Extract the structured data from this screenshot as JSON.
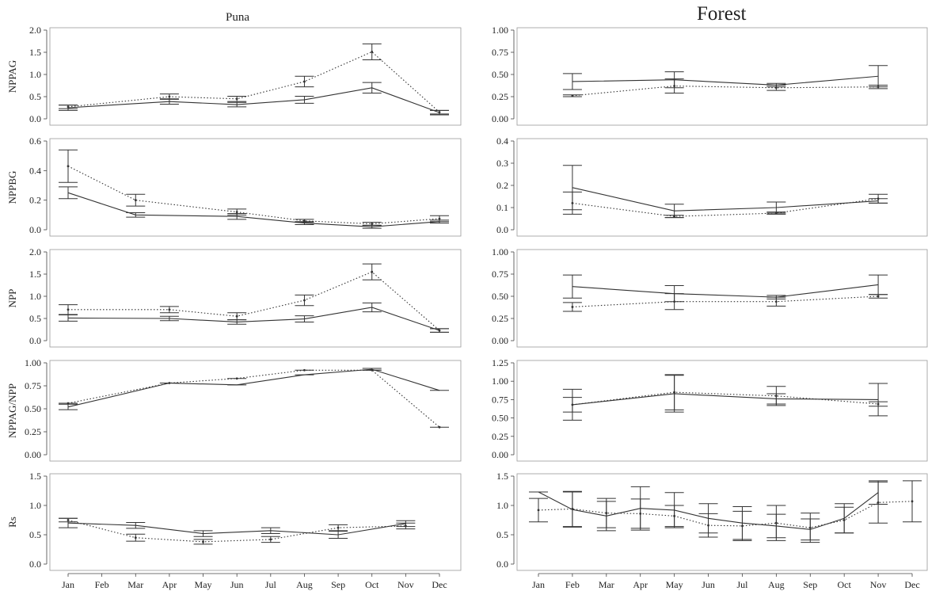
{
  "titles": {
    "left": "Puna",
    "right": "Forest"
  },
  "months": [
    "Jan",
    "Feb",
    "Mar",
    "Apr",
    "May",
    "Jun",
    "Jul",
    "Aug",
    "Sep",
    "Oct",
    "Nov",
    "Dec"
  ],
  "styles": {
    "line": "#333333",
    "axis": "#444444",
    "frame": "#999999"
  },
  "chart_data": [
    {
      "type": "line",
      "panel": "puna",
      "ylabel": "NPPAG",
      "ylim": [
        0,
        2.0
      ],
      "yticks": [
        "0.0",
        "0.5",
        "1.0",
        "1.5",
        "2.0"
      ],
      "x": [
        "Jan",
        "Apr",
        "Jun",
        "Aug",
        "Oct",
        "Dec"
      ],
      "series": [
        {
          "style": "solid",
          "values": [
            0.25,
            0.39,
            0.32,
            0.43,
            0.7,
            0.14
          ],
          "err": [
            0.06,
            0.06,
            0.05,
            0.08,
            0.12,
            0.05
          ]
        },
        {
          "style": "dotted",
          "values": [
            0.27,
            0.5,
            0.45,
            0.84,
            1.51,
            0.15
          ],
          "err": [
            0.04,
            0.06,
            0.06,
            0.12,
            0.18,
            0.04
          ]
        }
      ]
    },
    {
      "type": "line",
      "panel": "forest",
      "ylabel": "",
      "ylim": [
        0,
        1.0
      ],
      "yticks": [
        "0.00",
        "0.25",
        "0.50",
        "0.75",
        "1.00"
      ],
      "x": [
        "Feb",
        "May",
        "Aug",
        "Nov"
      ],
      "series": [
        {
          "style": "solid",
          "values": [
            0.42,
            0.44,
            0.38,
            0.48
          ],
          "err": [
            0.09,
            0.09,
            0.02,
            0.12
          ]
        },
        {
          "style": "dotted",
          "values": [
            0.26,
            0.37,
            0.35,
            0.36
          ],
          "err": [
            0.01,
            0.08,
            0.03,
            0.02
          ]
        }
      ]
    },
    {
      "type": "line",
      "panel": "puna",
      "ylabel": "NPPBG",
      "ylim": [
        0,
        0.6
      ],
      "yticks": [
        "0.0",
        "0.2",
        "0.4",
        "0.6"
      ],
      "x": [
        "Jan",
        "Mar",
        "Jun",
        "Aug",
        "Oct",
        "Dec"
      ],
      "series": [
        {
          "style": "solid",
          "values": [
            0.25,
            0.1,
            0.09,
            0.045,
            0.02,
            0.055
          ],
          "err": [
            0.04,
            0.015,
            0.02,
            0.01,
            0.01,
            0.01
          ]
        },
        {
          "style": "dotted",
          "values": [
            0.43,
            0.2,
            0.12,
            0.06,
            0.04,
            0.075
          ],
          "err": [
            0.11,
            0.04,
            0.02,
            0.01,
            0.01,
            0.02
          ]
        }
      ]
    },
    {
      "type": "line",
      "panel": "forest",
      "ylabel": "",
      "ylim": [
        0,
        0.4
      ],
      "yticks": [
        "0.0",
        "0.1",
        "0.2",
        "0.3",
        "0.4"
      ],
      "x": [
        "Feb",
        "May",
        "Aug",
        "Nov"
      ],
      "series": [
        {
          "style": "solid",
          "values": [
            0.19,
            0.085,
            0.1,
            0.13
          ],
          "err": [
            0.1,
            0.03,
            0.025,
            0.01
          ]
        },
        {
          "style": "dotted",
          "values": [
            0.12,
            0.06,
            0.075,
            0.14
          ],
          "err": [
            0.05,
            0.005,
            0.005,
            0.02
          ]
        }
      ]
    },
    {
      "type": "line",
      "panel": "puna",
      "ylabel": "NPP",
      "ylim": [
        0,
        2.0
      ],
      "yticks": [
        "0.0",
        "0.5",
        "1.0",
        "1.5",
        "2.0"
      ],
      "x": [
        "Jan",
        "Apr",
        "Jun",
        "Aug",
        "Oct",
        "Dec"
      ],
      "series": [
        {
          "style": "solid",
          "values": [
            0.51,
            0.5,
            0.42,
            0.49,
            0.75,
            0.23
          ],
          "err": [
            0.07,
            0.05,
            0.05,
            0.07,
            0.1,
            0.04
          ]
        },
        {
          "style": "dotted",
          "values": [
            0.7,
            0.7,
            0.55,
            0.91,
            1.55,
            0.23
          ],
          "err": [
            0.11,
            0.07,
            0.08,
            0.12,
            0.18,
            0.04
          ]
        }
      ]
    },
    {
      "type": "line",
      "panel": "forest",
      "ylabel": "",
      "ylim": [
        0,
        1.0
      ],
      "yticks": [
        "0.00",
        "0.25",
        "0.50",
        "0.75",
        "1.00"
      ],
      "x": [
        "Feb",
        "May",
        "Aug",
        "Nov"
      ],
      "series": [
        {
          "style": "solid",
          "values": [
            0.61,
            0.53,
            0.49,
            0.63
          ],
          "err": [
            0.13,
            0.09,
            0.02,
            0.11
          ]
        },
        {
          "style": "dotted",
          "values": [
            0.38,
            0.44,
            0.44,
            0.5
          ],
          "err": [
            0.05,
            0.09,
            0.05,
            0.02
          ]
        }
      ]
    },
    {
      "type": "line",
      "panel": "puna",
      "ylabel": "NPPAG/NPP",
      "ylim": [
        0,
        1.0
      ],
      "yticks": [
        "0.00",
        "0.25",
        "0.50",
        "0.75",
        "1.00"
      ],
      "x": [
        "Jan",
        "Apr",
        "Jun",
        "Aug",
        "Oct",
        "Dec"
      ],
      "series": [
        {
          "style": "solid",
          "values": [
            0.52,
            0.78,
            0.76,
            0.87,
            0.93,
            0.7
          ],
          "err": [
            0.03,
            0.0,
            0.0,
            0.0,
            0.01,
            0.0
          ]
        },
        {
          "style": "dotted",
          "values": [
            0.56,
            0.78,
            0.83,
            0.92,
            0.92,
            0.3
          ],
          "err": [
            0.0,
            0.0,
            0.0,
            0.0,
            0.0,
            0.0
          ]
        }
      ]
    },
    {
      "type": "line",
      "panel": "forest",
      "ylabel": "",
      "ylim": [
        0,
        1.25
      ],
      "yticks": [
        "0.00",
        "0.25",
        "0.50",
        "0.75",
        "1.00",
        "1.25"
      ],
      "x": [
        "Feb",
        "May",
        "Aug",
        "Nov"
      ],
      "series": [
        {
          "style": "solid",
          "values": [
            0.68,
            0.83,
            0.76,
            0.75
          ],
          "err": [
            0.21,
            0.25,
            0.07,
            0.22
          ]
        },
        {
          "style": "dotted",
          "values": [
            0.68,
            0.85,
            0.8,
            0.69
          ],
          "err": [
            0.1,
            0.24,
            0.13,
            0.03
          ]
        }
      ]
    },
    {
      "type": "line",
      "panel": "puna",
      "ylabel": "Rs",
      "ylim": [
        0,
        1.5
      ],
      "yticks": [
        "0.0",
        "0.5",
        "1.0",
        "1.5"
      ],
      "x": [
        "Jan",
        "Mar",
        "May",
        "Jul",
        "Sep",
        "Nov"
      ],
      "series": [
        {
          "style": "solid",
          "values": [
            0.7,
            0.66,
            0.52,
            0.57,
            0.5,
            0.69
          ],
          "err": [
            0.08,
            0.05,
            0.05,
            0.05,
            0.06,
            0.05
          ]
        },
        {
          "style": "dotted",
          "values": [
            0.75,
            0.45,
            0.38,
            0.42,
            0.62,
            0.65
          ],
          "err": [
            0.03,
            0.06,
            0.04,
            0.05,
            0.05,
            0.05
          ]
        }
      ]
    },
    {
      "type": "line",
      "panel": "forest",
      "ylabel": "",
      "ylim": [
        0,
        1.5
      ],
      "yticks": [
        "0.0",
        "0.5",
        "1.0",
        "1.5"
      ],
      "x": [
        "Jan",
        "Feb",
        "Mar",
        "Apr",
        "May",
        "Jun",
        "Jul",
        "Aug",
        "Sep",
        "Oct",
        "Nov",
        "Dec"
      ],
      "series": [
        {
          "style": "solid",
          "values": [
            1.23,
            0.93,
            0.82,
            0.95,
            0.92,
            0.78,
            0.7,
            0.65,
            0.59,
            0.78,
            1.22,
            null
          ],
          "err": [
            0.0,
            0.3,
            0.25,
            0.37,
            0.3,
            0.25,
            0.28,
            0.2,
            0.18,
            0.25,
            0.2,
            0.0
          ]
        },
        {
          "style": "dotted",
          "values": [
            0.92,
            0.94,
            0.87,
            0.86,
            0.82,
            0.66,
            0.65,
            0.7,
            0.62,
            0.75,
            1.05,
            1.07
          ],
          "err": [
            0.2,
            0.3,
            0.25,
            0.25,
            0.18,
            0.2,
            0.25,
            0.3,
            0.25,
            0.22,
            0.35,
            0.35
          ]
        }
      ]
    }
  ]
}
